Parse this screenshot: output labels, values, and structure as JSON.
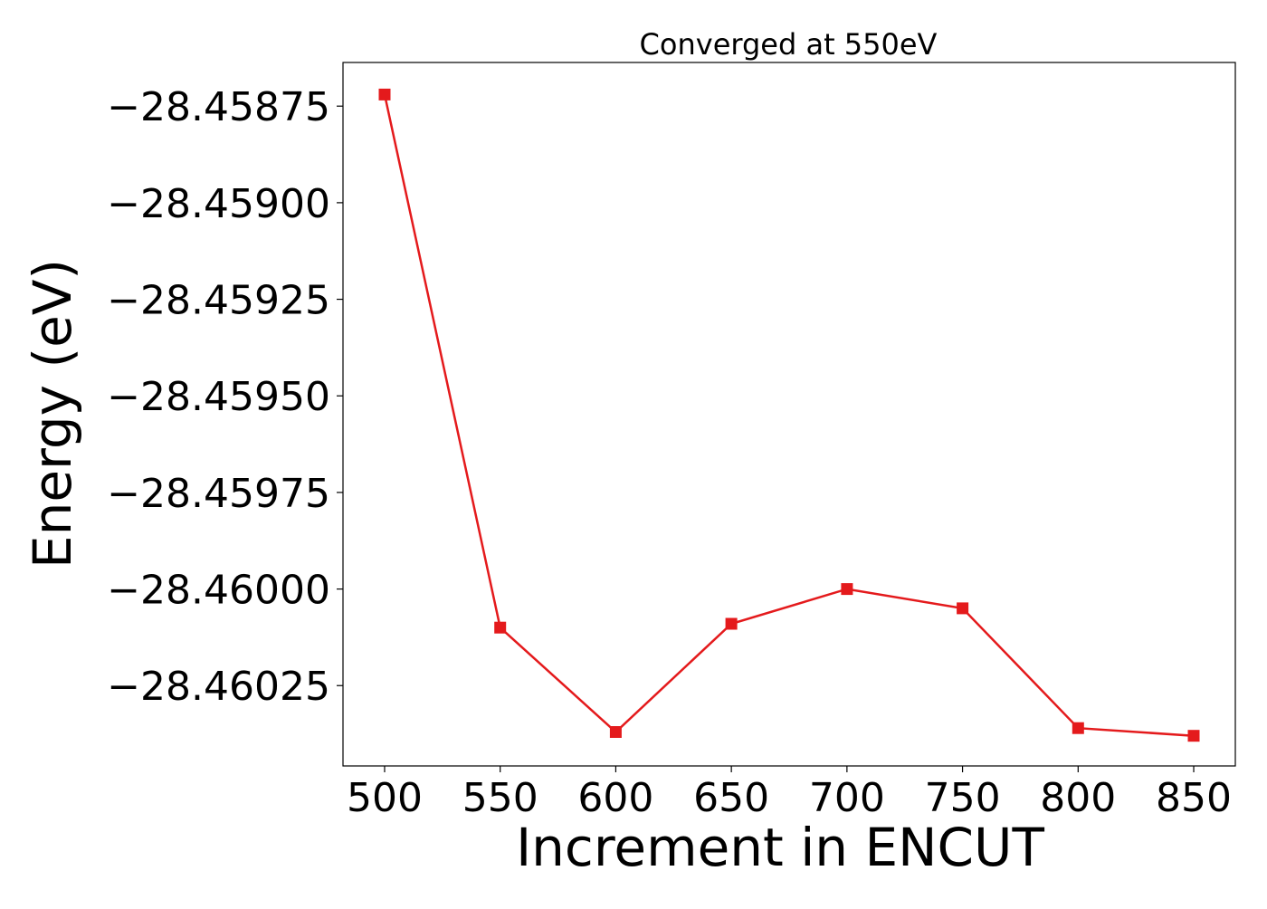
{
  "chart_data": {
    "type": "line",
    "title": "Converged at 550eV",
    "xlabel": "Increment in ENCUT",
    "ylabel": "Energy (eV)",
    "x": [
      500,
      550,
      600,
      650,
      700,
      750,
      800,
      850
    ],
    "series": [
      {
        "values": [
          -28.45872,
          -28.4601,
          -28.46037,
          -28.46009,
          -28.46,
          -28.46005,
          -28.46036,
          -28.46038
        ],
        "color": "#e41a1c",
        "marker": "square"
      }
    ],
    "xticks": [
      500,
      550,
      600,
      650,
      700,
      750,
      800,
      850
    ],
    "xtick_labels": [
      "500",
      "550",
      "600",
      "650",
      "700",
      "750",
      "800",
      "850"
    ],
    "yticks": [
      -28.45875,
      -28.459,
      -28.45925,
      -28.4595,
      -28.45975,
      -28.46,
      -28.46025
    ],
    "ytick_labels": [
      "−28.45875",
      "−28.45900",
      "−28.45925",
      "−28.45950",
      "−28.45975",
      "−28.46000",
      "−28.46025"
    ],
    "xlim": [
      482,
      868
    ],
    "ylim": [
      -28.460458,
      -28.458637
    ],
    "grid": false,
    "legend": "none"
  }
}
